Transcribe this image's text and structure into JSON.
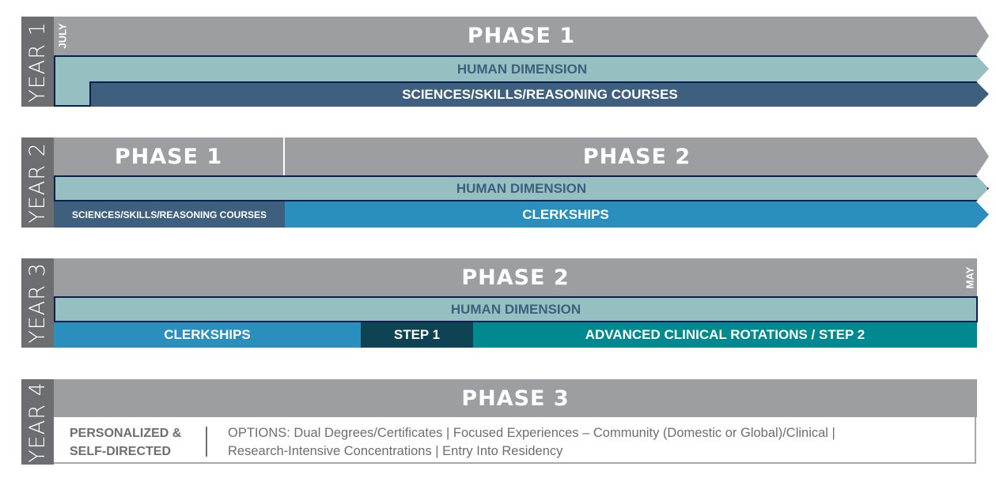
{
  "colors": {
    "phase": "#9d9ea2",
    "year": "#6d6e71",
    "human_dimension": "#95bfc0",
    "sciences": "#3f5f7e",
    "clerkships": "#2a8fbc",
    "step1": "#0e4354",
    "advanced": "#008a8f"
  },
  "year1": {
    "label": "YEAR 1",
    "month": "JULY",
    "phase": "PHASE 1",
    "human": "HUMAN DIMENSION",
    "sciences": "SCIENCES/SKILLS/REASONING COURSES"
  },
  "year2": {
    "label": "YEAR 2",
    "phase_a": "PHASE 1",
    "phase_b": "PHASE 2",
    "human": "HUMAN DIMENSION",
    "sciences": "SCIENCES/SKILLS/REASONING COURSES",
    "clerkships": "CLERKSHIPS"
  },
  "year3": {
    "label": "YEAR 3",
    "month": "MAY",
    "phase": "PHASE 2",
    "human": "HUMAN DIMENSION",
    "clerkships": "CLERKSHIPS",
    "step1": "STEP 1",
    "advanced": "ADVANCED CLINICAL ROTATIONS / STEP 2"
  },
  "year4": {
    "label": "YEAR 4",
    "phase": "PHASE 3",
    "left_line1": "PERSONALIZED &",
    "left_line2": "SELF-DIRECTED",
    "options_line1": "OPTIONS: Dual Degrees/Certificates | Focused Experiences – Community (Domestic or Global)/Clinical |",
    "options_line2": "Research-Intensive Concentrations | Entry Into Residency"
  }
}
